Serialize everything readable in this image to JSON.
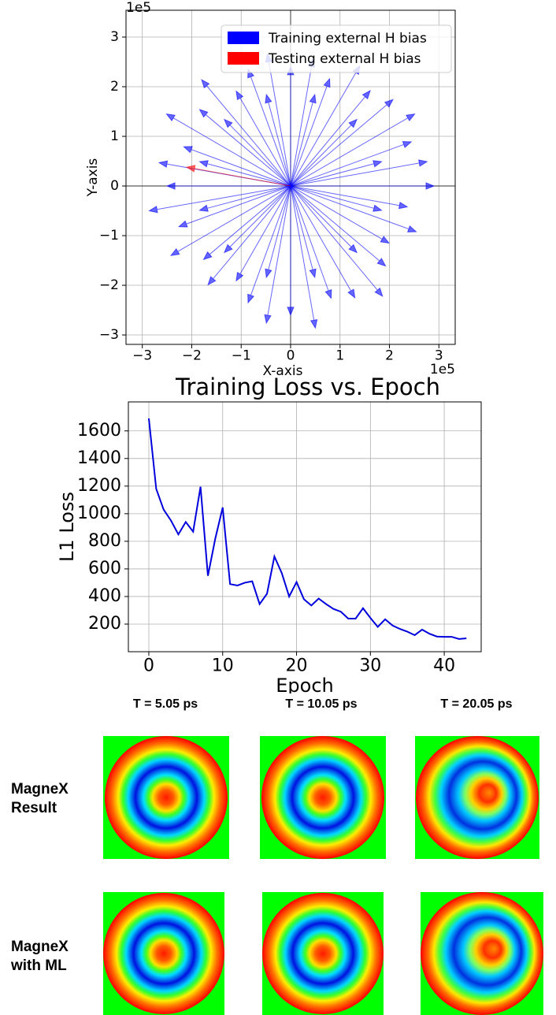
{
  "chart_data": [
    {
      "type": "quiver",
      "xlabel": "X-axis",
      "ylabel": "Y-axis",
      "x_offset": "1e5",
      "y_offset": "1e5",
      "xlim": [
        -3.33,
        3.33
      ],
      "ylim": [
        -3.19,
        3.54
      ],
      "xticks": [
        {
          "value": -3,
          "label": "−3"
        },
        {
          "value": -2,
          "label": "−2"
        },
        {
          "value": -1,
          "label": "−1"
        },
        0,
        1,
        2,
        3
      ],
      "yticks": [
        {
          "value": -3,
          "label": "−3"
        },
        {
          "value": -2,
          "label": "−2"
        },
        {
          "value": -1,
          "label": "−1"
        },
        0,
        1,
        2,
        3
      ],
      "grid": true,
      "legend": "upper right",
      "series": [
        {
          "name": "Training external H bias",
          "color": "#0000ff",
          "x": [
            2.9,
            2.76,
            2.44,
            2.51,
            2.07,
            1.61,
            1.4,
            0.79,
            0.45,
            0,
            -0.47,
            -0.86,
            -1.1,
            -1.8,
            -1.84,
            -2.51,
            -2.16,
            -2.66,
            -2.5,
            -2.86,
            -2.26,
            -2.42,
            -1.76,
            -1.67,
            -1.1,
            -0.86,
            -0.49,
            0,
            0.5,
            0.82,
            1.3,
            1.86,
            1.92,
            1.99,
            2.54,
            2.36,
            1.84,
            1.34,
            0.49,
            -0.49,
            -1.34,
            -1.84,
            -1.84,
            -1.34,
            -0.49,
            0.49,
            1.34,
            1.84
          ],
          "y": [
            0,
            0.49,
            0.89,
            1.45,
            1.74,
            1.92,
            2.42,
            2.16,
            2.56,
            2.4,
            2.66,
            2.35,
            1.91,
            2.14,
            1.54,
            1.45,
            0.79,
            0.47,
            0,
            -0.5,
            -0.82,
            -1.4,
            -1.48,
            -1.99,
            -1.91,
            -2.35,
            -2.76,
            -2.6,
            -2.86,
            -2.26,
            -2.25,
            -2.22,
            -1.61,
            -1.15,
            -0.92,
            -0.42,
            0.49,
            1.34,
            1.84,
            1.84,
            1.34,
            0.49,
            -0.49,
            -1.34,
            -1.84,
            -1.84,
            -1.34,
            -0.49
          ]
        },
        {
          "name": "Testing external H bias",
          "color": "#ff0000",
          "x": [
            -2.1
          ],
          "y": [
            0.38
          ]
        }
      ]
    },
    {
      "type": "line",
      "title": "Training Loss vs. Epoch",
      "xlabel": "Epoch",
      "ylabel": "L1 Loss",
      "x": [
        0,
        1,
        2,
        3,
        4,
        5,
        6,
        7,
        8,
        9,
        10,
        11,
        12,
        13,
        14,
        15,
        16,
        17,
        18,
        19,
        20,
        21,
        22,
        23,
        24,
        25,
        26,
        27,
        28,
        29,
        30,
        31,
        32,
        33,
        34,
        35,
        36,
        37,
        38,
        39,
        40,
        41,
        42,
        43
      ],
      "series": [
        {
          "color": "#0000dd",
          "values": [
            1690,
            1180,
            1030,
            950,
            850,
            940,
            870,
            1195,
            550,
            820,
            1045,
            490,
            480,
            500,
            510,
            345,
            420,
            690,
            570,
            400,
            505,
            380,
            335,
            385,
            345,
            310,
            290,
            240,
            240,
            315,
            245,
            180,
            235,
            190,
            165,
            145,
            120,
            160,
            130,
            110,
            108,
            108,
            92,
            97
          ]
        }
      ],
      "xlim": [
        -2.77,
        45
      ],
      "ylim": [
        0,
        1810
      ],
      "xticks": [
        0,
        10,
        20,
        30,
        40
      ],
      "yticks": [
        200,
        400,
        600,
        800,
        1000,
        1200,
        1400,
        1600
      ],
      "grid": true
    }
  ],
  "figure_grid": {
    "column_titles": [
      "T = 5.05 ps",
      "T = 10.05 ps",
      "T = 20.05 ps"
    ],
    "row_labels": [
      "MagneX Result",
      "MagneX with ML"
    ]
  }
}
